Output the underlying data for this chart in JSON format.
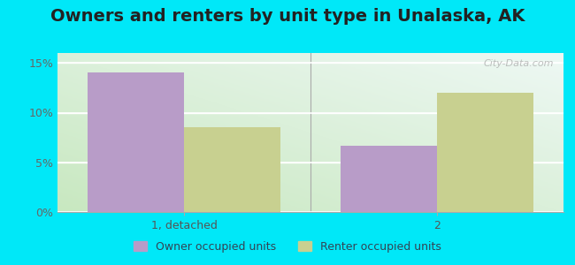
{
  "title": "Owners and renters by unit type in Unalaska, AK",
  "categories": [
    "1, detached",
    "2"
  ],
  "owner_values": [
    0.14,
    0.067
  ],
  "renter_values": [
    0.085,
    0.12
  ],
  "owner_color": "#b89cc8",
  "renter_color": "#c8d090",
  "bg_color_bottom_left": "#c8e8c0",
  "bg_color_top_right": "#e8f5f0",
  "outer_background": "#00e8f8",
  "ylim": [
    0,
    0.16
  ],
  "yticks": [
    0.0,
    0.05,
    0.1,
    0.15
  ],
  "ytick_labels": [
    "0%",
    "5%",
    "10%",
    "15%"
  ],
  "legend_owner": "Owner occupied units",
  "legend_renter": "Renter occupied units",
  "bar_width": 0.38,
  "title_fontsize": 14,
  "watermark": "City-Data.com"
}
